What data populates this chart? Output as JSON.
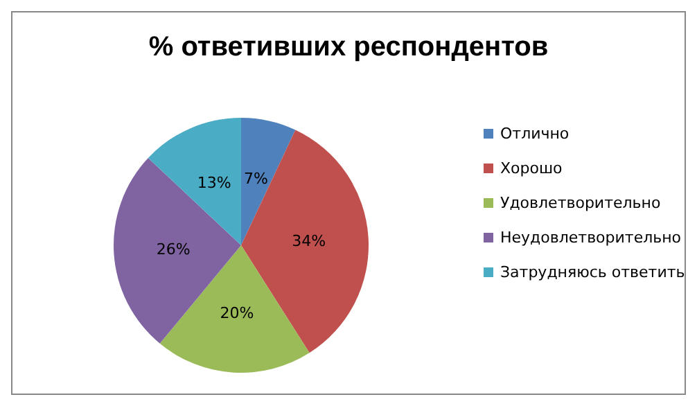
{
  "chart_data": {
    "type": "pie",
    "title": "% ответивших респондентов",
    "categories": [
      "Отлично",
      "Хорошо",
      "Удовлетворительно",
      "Неудовлетворительно",
      "Затрудняюсь ответить"
    ],
    "values": [
      7,
      34,
      20,
      26,
      13
    ],
    "value_labels": [
      "7%",
      "34%",
      "20%",
      "26%",
      "13%"
    ],
    "colors": [
      "#4f81bd",
      "#c0504d",
      "#9bbb59",
      "#8064a2",
      "#4bacc6"
    ],
    "legend": "right"
  }
}
